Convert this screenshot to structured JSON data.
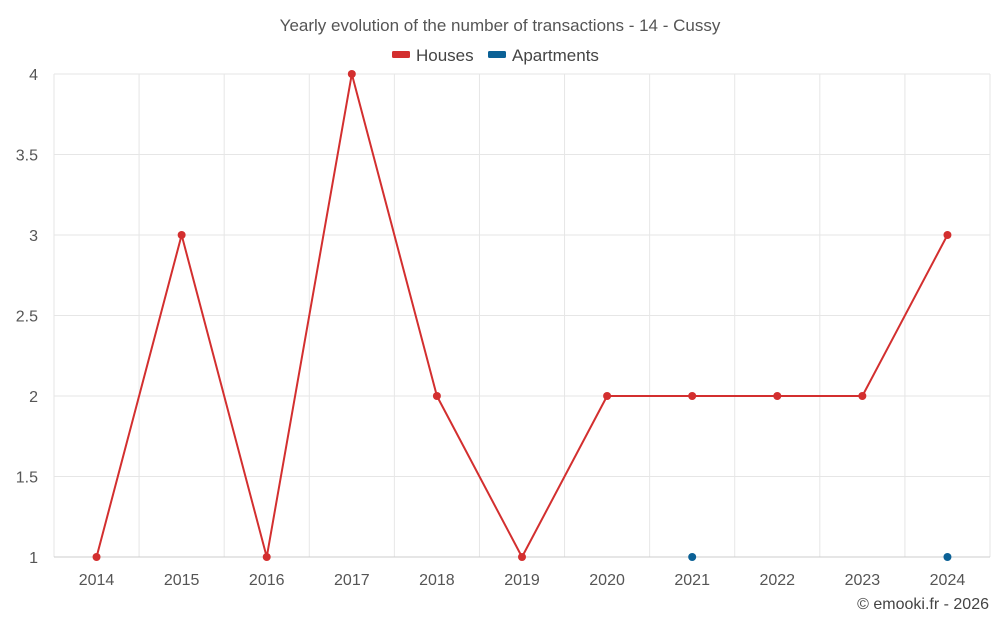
{
  "chart_data": {
    "type": "line",
    "title": "Yearly evolution of the number of transactions - 14 - Cussy",
    "categories": [
      "2014",
      "2015",
      "2016",
      "2017",
      "2018",
      "2019",
      "2020",
      "2021",
      "2022",
      "2023",
      "2024"
    ],
    "series": [
      {
        "name": "Houses",
        "color": "#d32f2f",
        "values": [
          1,
          3,
          1,
          4,
          2,
          1,
          2,
          2,
          2,
          2,
          3
        ]
      },
      {
        "name": "Apartments",
        "color": "#0b6196",
        "values": [
          null,
          null,
          null,
          null,
          null,
          null,
          null,
          1,
          null,
          null,
          1
        ]
      }
    ],
    "ylim": [
      1,
      4
    ],
    "yticks": [
      "1",
      "1.5",
      "2",
      "2.5",
      "3",
      "3.5",
      "4"
    ],
    "grid": true,
    "legend": "top-center"
  },
  "credit": "© emooki.fr - 2026"
}
